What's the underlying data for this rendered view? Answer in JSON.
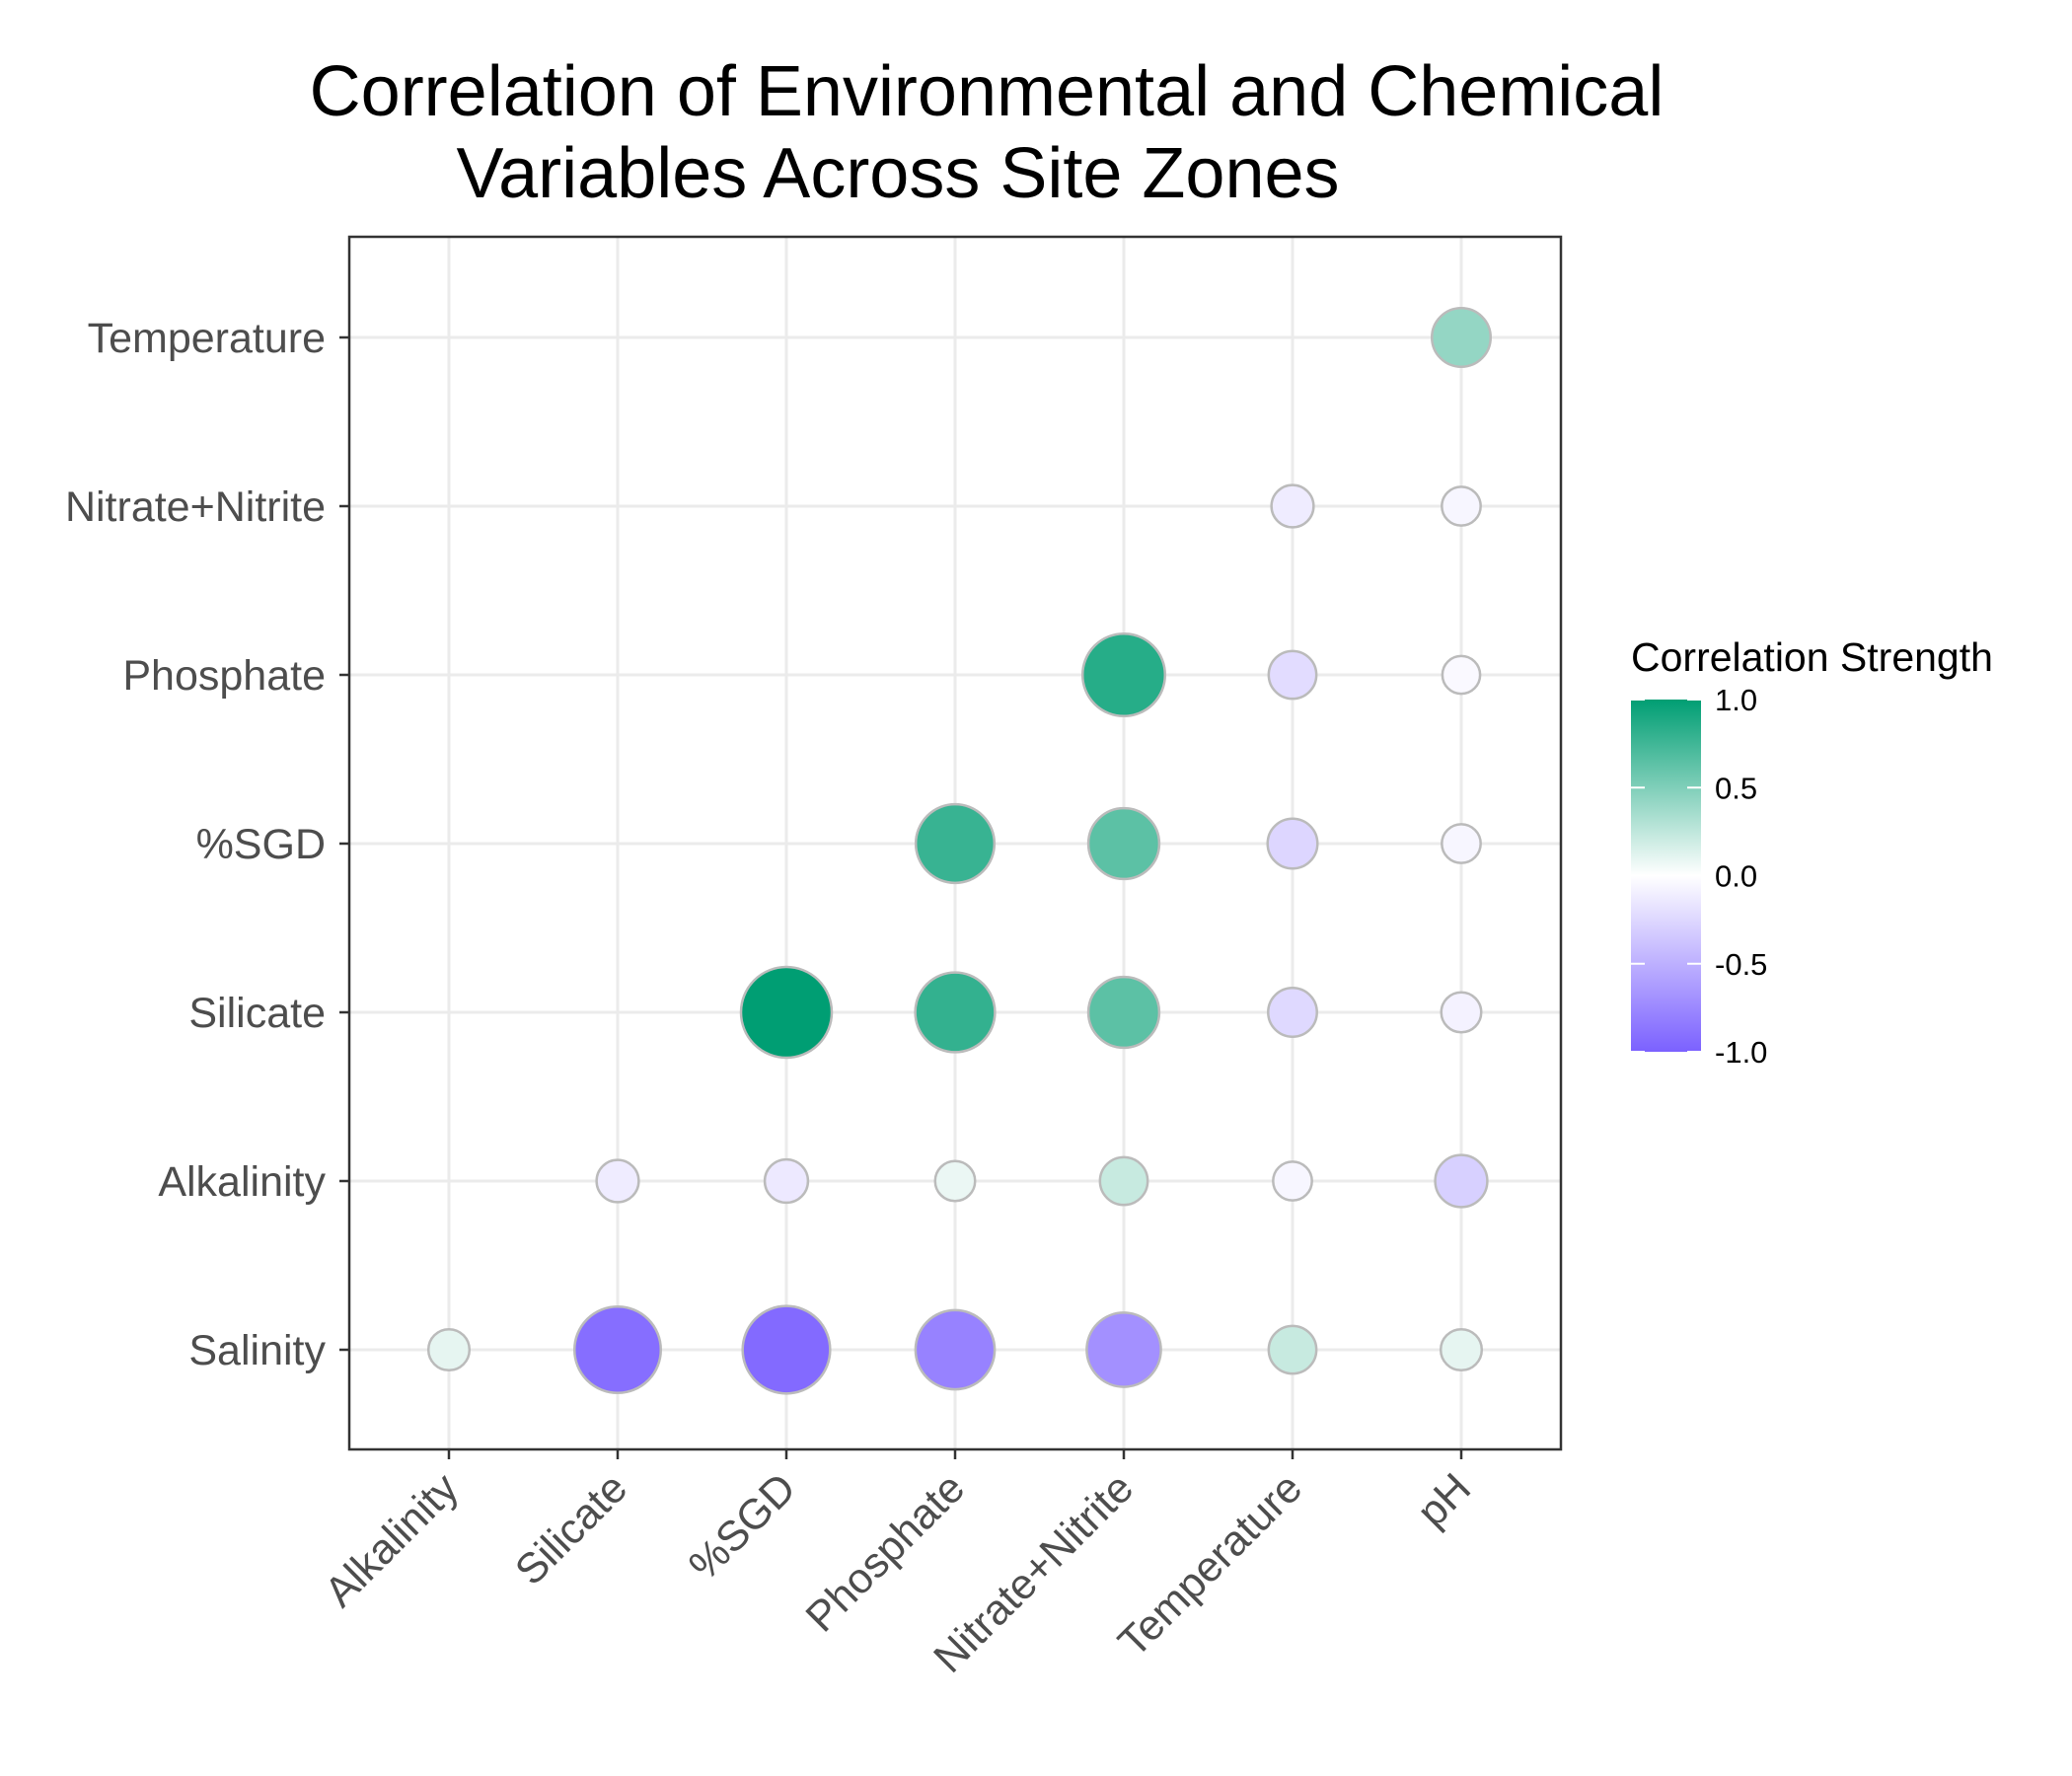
{
  "chart_data": {
    "type": "scatter",
    "subtype": "correlation bubble matrix (upper triangle)",
    "title_lines": [
      "Correlation of Environmental and Chemical",
      "Variables Across Site Zones"
    ],
    "x_categories": [
      "Alkalinity",
      "Silicate",
      "%SGD",
      "Phosphate",
      "Nitrate+Nitrite",
      "Temperature",
      "pH"
    ],
    "y_categories": [
      "Salinity",
      "Alkalinity",
      "Silicate",
      "%SGD",
      "Phosphate",
      "Nitrate+Nitrite",
      "Temperature"
    ],
    "points": [
      {
        "x": "Alkalinity",
        "y": "Salinity",
        "r": 0.1
      },
      {
        "x": "Silicate",
        "y": "Salinity",
        "r": -0.92
      },
      {
        "x": "%SGD",
        "y": "Salinity",
        "r": -0.94
      },
      {
        "x": "Phosphate",
        "y": "Salinity",
        "r": -0.79
      },
      {
        "x": "Nitrate+Nitrite",
        "y": "Salinity",
        "r": -0.7
      },
      {
        "x": "Temperature",
        "y": "Salinity",
        "r": 0.22
      },
      {
        "x": "pH",
        "y": "Salinity",
        "r": 0.1
      },
      {
        "x": "Silicate",
        "y": "Alkalinity",
        "r": -0.12
      },
      {
        "x": "%SGD",
        "y": "Alkalinity",
        "r": -0.14
      },
      {
        "x": "Phosphate",
        "y": "Alkalinity",
        "r": 0.08
      },
      {
        "x": "Nitrate+Nitrite",
        "y": "Alkalinity",
        "r": 0.22
      },
      {
        "x": "Temperature",
        "y": "Alkalinity",
        "r": -0.06
      },
      {
        "x": "pH",
        "y": "Alkalinity",
        "r": -0.3
      },
      {
        "x": "%SGD",
        "y": "Silicate",
        "r": 1.0
      },
      {
        "x": "Phosphate",
        "y": "Silicate",
        "r": 0.8
      },
      {
        "x": "Nitrate+Nitrite",
        "y": "Silicate",
        "r": 0.64
      },
      {
        "x": "Temperature",
        "y": "Silicate",
        "r": -0.24
      },
      {
        "x": "pH",
        "y": "Silicate",
        "r": -0.08
      },
      {
        "x": "Phosphate",
        "y": "%SGD",
        "r": 0.78
      },
      {
        "x": "Nitrate+Nitrite",
        "y": "%SGD",
        "r": 0.64
      },
      {
        "x": "Temperature",
        "y": "%SGD",
        "r": -0.26
      },
      {
        "x": "pH",
        "y": "%SGD",
        "r": -0.06
      },
      {
        "x": "Nitrate+Nitrite",
        "y": "Phosphate",
        "r": 0.85
      },
      {
        "x": "Temperature",
        "y": "Phosphate",
        "r": -0.22
      },
      {
        "x": "pH",
        "y": "Phosphate",
        "r": -0.04
      },
      {
        "x": "Temperature",
        "y": "Nitrate+Nitrite",
        "r": -0.12
      },
      {
        "x": "pH",
        "y": "Nitrate+Nitrite",
        "r": -0.06
      },
      {
        "x": "pH",
        "y": "Temperature",
        "r": 0.42
      }
    ],
    "size_encoding": "absolute correlation",
    "legend": {
      "title": "Correlation Strength",
      "placement": "right",
      "ticks": [
        1.0,
        0.5,
        0.0,
        -0.5,
        -1.0
      ],
      "tick_labels": [
        "1.0",
        "0.5",
        "0.0",
        "-0.5",
        "-1.0"
      ],
      "range": [
        -1,
        1
      ]
    },
    "colors": {
      "positive": "#009E73",
      "zero": "#FFFFFF",
      "negative": "#7B61FF",
      "point_outline": "#BBBBBB",
      "grid": "#EBEBEB",
      "panel_border": "#333333"
    },
    "grid": true
  }
}
